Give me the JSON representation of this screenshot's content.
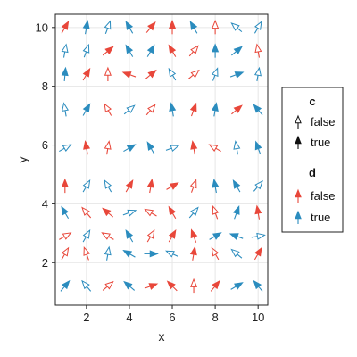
{
  "chart_data": {
    "type": "quiver",
    "xlabel": "x",
    "ylabel": "y",
    "xlim": [
      0.55,
      10.45
    ],
    "ylim": [
      0.55,
      10.45
    ],
    "xticks": [
      2,
      4,
      6,
      8,
      10
    ],
    "yticks": [
      2,
      4,
      6,
      8,
      10
    ],
    "grid": true,
    "legend_position": "right",
    "series_colors": {
      "false": "#e8473a",
      "true": "#2b8cbe"
    },
    "legend": {
      "c": {
        "title": "c",
        "entries": [
          "false",
          "true"
        ]
      },
      "d": {
        "title": "d",
        "entries": [
          "false",
          "true"
        ]
      }
    },
    "x": [
      1,
      2,
      3,
      4,
      5,
      6,
      7,
      8,
      9,
      10
    ],
    "y": [
      1.2,
      2.3,
      2.9,
      3.7,
      4.6,
      5.9,
      7.2,
      8.4,
      9.2,
      10
    ],
    "arrows": [
      [
        [
          -50,
          1,
          1
        ],
        [
          -130,
          0,
          1
        ],
        [
          -40,
          0,
          0
        ],
        [
          -140,
          1,
          1
        ],
        [
          -20,
          1,
          0
        ],
        [
          -135,
          1,
          0
        ],
        [
          -90,
          0,
          0
        ],
        [
          -50,
          1,
          0
        ],
        [
          -30,
          1,
          1
        ],
        [
          -130,
          1,
          1
        ]
      ],
      [
        [
          -60,
          0,
          0
        ],
        [
          -110,
          0,
          0
        ],
        [
          -80,
          0,
          1
        ],
        [
          -150,
          1,
          1
        ],
        [
          0,
          1,
          1
        ],
        [
          -155,
          0,
          1
        ],
        [
          -80,
          1,
          0
        ],
        [
          -120,
          0,
          0
        ],
        [
          -140,
          0,
          1
        ],
        [
          -60,
          1,
          0
        ]
      ],
      [
        [
          -30,
          0,
          0
        ],
        [
          -60,
          0,
          1
        ],
        [
          -150,
          0,
          0
        ],
        [
          -120,
          1,
          1
        ],
        [
          -60,
          0,
          0
        ],
        [
          -60,
          1,
          0
        ],
        [
          -110,
          1,
          0
        ],
        [
          -30,
          1,
          1
        ],
        [
          -160,
          1,
          1
        ],
        [
          -10,
          0,
          1
        ]
      ],
      [
        [
          -120,
          1,
          1
        ],
        [
          -130,
          0,
          0
        ],
        [
          -140,
          1,
          0
        ],
        [
          -20,
          0,
          1
        ],
        [
          -150,
          0,
          0
        ],
        [
          -120,
          1,
          0
        ],
        [
          -50,
          0,
          1
        ],
        [
          -110,
          0,
          0
        ],
        [
          -70,
          1,
          1
        ],
        [
          -100,
          1,
          0
        ]
      ],
      [
        [
          -90,
          1,
          0
        ],
        [
          -60,
          0,
          1
        ],
        [
          -120,
          0,
          1
        ],
        [
          -60,
          1,
          0
        ],
        [
          -80,
          1,
          0
        ],
        [
          -30,
          1,
          0
        ],
        [
          -70,
          0,
          0
        ],
        [
          -100,
          1,
          1
        ],
        [
          -120,
          1,
          1
        ],
        [
          -50,
          0,
          1
        ]
      ],
      [
        [
          -30,
          0,
          1
        ],
        [
          -100,
          1,
          0
        ],
        [
          -80,
          0,
          0
        ],
        [
          -30,
          1,
          1
        ],
        [
          -120,
          1,
          1
        ],
        [
          -20,
          0,
          1
        ],
        [
          -100,
          1,
          0
        ],
        [
          -150,
          0,
          0
        ],
        [
          -100,
          0,
          1
        ],
        [
          -110,
          1,
          1
        ]
      ],
      [
        [
          -100,
          0,
          1
        ],
        [
          -60,
          1,
          1
        ],
        [
          -120,
          0,
          0
        ],
        [
          -40,
          0,
          1
        ],
        [
          -50,
          0,
          0
        ],
        [
          -100,
          1,
          1
        ],
        [
          -70,
          1,
          0
        ],
        [
          -80,
          1,
          1
        ],
        [
          -40,
          1,
          0
        ],
        [
          -130,
          1,
          1
        ]
      ],
      [
        [
          -85,
          1,
          1
        ],
        [
          -60,
          1,
          0
        ],
        [
          -90,
          0,
          0
        ],
        [
          -160,
          1,
          0
        ],
        [
          -40,
          1,
          0
        ],
        [
          -120,
          0,
          1
        ],
        [
          -40,
          0,
          0
        ],
        [
          -70,
          0,
          1
        ],
        [
          -20,
          1,
          1
        ],
        [
          -80,
          0,
          1
        ]
      ],
      [
        [
          -80,
          0,
          1
        ],
        [
          -70,
          0,
          1
        ],
        [
          -40,
          1,
          0
        ],
        [
          -120,
          1,
          1
        ],
        [
          -60,
          1,
          1
        ],
        [
          -120,
          1,
          0
        ],
        [
          -50,
          0,
          0
        ],
        [
          -90,
          1,
          1
        ],
        [
          -40,
          1,
          1
        ],
        [
          -100,
          0,
          0
        ]
      ],
      [
        [
          -60,
          1,
          0
        ],
        [
          -80,
          1,
          1
        ],
        [
          -70,
          0,
          1
        ],
        [
          -120,
          1,
          1
        ],
        [
          -50,
          1,
          0
        ],
        [
          -90,
          1,
          0
        ],
        [
          -120,
          1,
          1
        ],
        [
          -90,
          0,
          0
        ],
        [
          -140,
          0,
          1
        ],
        [
          -60,
          0,
          1
        ]
      ]
    ]
  }
}
